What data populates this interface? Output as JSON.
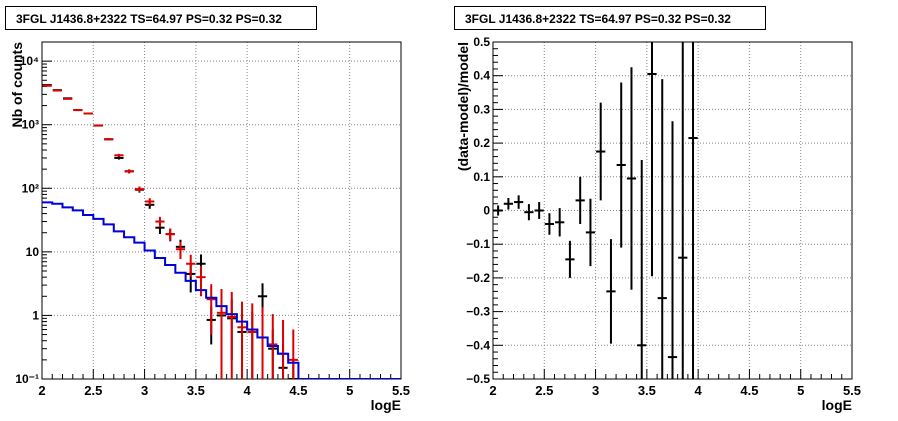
{
  "chart_data": [
    {
      "type": "line",
      "title": "3FGL J1436.8+2322 TS=64.97 PS=0.32 PS=0.32",
      "xlabel": "logE",
      "ylabel": "Nb of counts",
      "ylog": true,
      "xlim": [
        2,
        5.5
      ],
      "ylim": [
        0.1,
        20000
      ],
      "grid": true,
      "x_ticks": [
        2,
        2.5,
        3,
        3.5,
        4,
        4.5,
        5,
        5.5
      ],
      "x_tick_labels": [
        "2",
        "2.5",
        "3",
        "3.5",
        "4",
        "4.5",
        "5",
        "5.5"
      ],
      "y_ticks": [
        0.1,
        1,
        10,
        100,
        1000,
        10000
      ],
      "y_tick_labels": [
        "10⁻¹",
        "1",
        "10",
        "10²",
        "10³",
        "10⁴"
      ],
      "bin_width": 0.1,
      "series": [
        {
          "color": "#000000",
          "style": "errorbar",
          "x": [
            2.05,
            2.15,
            2.25,
            2.35,
            2.45,
            2.55,
            2.65,
            2.75,
            2.85,
            2.95,
            3.05,
            3.15,
            3.25,
            3.35,
            3.45,
            3.55,
            3.65,
            3.75,
            3.85,
            3.95,
            4.05,
            4.15,
            4.25,
            4.35,
            4.45
          ],
          "y": [
            4200,
            3500,
            2600,
            1700,
            1500,
            970,
            590,
            300,
            185,
            95,
            55,
            24,
            19,
            12,
            4.5,
            6.5,
            0.85,
            1.0,
            0.9,
            0.55,
            0.55,
            2.0,
            0.3,
            0.15,
            0.1
          ],
          "err_lo": [
            60,
            55,
            50,
            40,
            38,
            30,
            24,
            17,
            13,
            9.5,
            7.4,
            4.9,
            4.3,
            3.5,
            2.2,
            2.6,
            0.5,
            0.8,
            0.7,
            0.5,
            0.5,
            0.9,
            0.3,
            0.1,
            0.05
          ],
          "err_hi": [
            60,
            55,
            50,
            40,
            38,
            30,
            24,
            17,
            13,
            9.5,
            7.4,
            4.9,
            4.3,
            3.5,
            2.2,
            2.6,
            0.5,
            1.0,
            0.9,
            0.6,
            0.6,
            1.2,
            0.3,
            0.2,
            0.1
          ]
        },
        {
          "color": "#dd0000",
          "style": "errorbar",
          "x": [
            2.05,
            2.15,
            2.25,
            2.35,
            2.45,
            2.55,
            2.65,
            2.75,
            2.85,
            2.95,
            3.05,
            3.15,
            3.25,
            3.35,
            3.45,
            3.55,
            3.65,
            3.75,
            3.85,
            3.95,
            4.05,
            4.15,
            4.25,
            4.35,
            4.45
          ],
          "y": [
            4100,
            3450,
            2550,
            1700,
            1500,
            970,
            590,
            330,
            185,
            97,
            62,
            30,
            19,
            11,
            6.5,
            4.0,
            1.8,
            1.1,
            0.95,
            0.65,
            0.55,
            0.45,
            0.35,
            0.25,
            0.2
          ],
          "err_lo": [
            60,
            55,
            50,
            40,
            38,
            30,
            24,
            18,
            13,
            9.8,
            7.9,
            5.5,
            4.3,
            3.3,
            2.5,
            2,
            1.3,
            1.0,
            0.9,
            0.6,
            0.5,
            0.4,
            0.3,
            0.2,
            0.1
          ],
          "err_hi": [
            60,
            55,
            50,
            40,
            38,
            30,
            24,
            18,
            13,
            9.8,
            7.9,
            5.5,
            4.3,
            3.3,
            2.5,
            2,
            1.3,
            1.5,
            1.4,
            1.0,
            1.0,
            0.9,
            0.7,
            0.6,
            0.4
          ]
        },
        {
          "color": "#0000dd",
          "style": "step",
          "x": [
            2.05,
            2.15,
            2.25,
            2.35,
            2.45,
            2.55,
            2.65,
            2.75,
            2.85,
            2.95,
            3.05,
            3.15,
            3.25,
            3.35,
            3.45,
            3.55,
            3.65,
            3.75,
            3.85,
            3.95,
            4.05,
            4.15,
            4.25,
            4.35,
            4.45,
            4.55,
            4.65,
            4.75,
            4.85,
            4.95,
            5.05,
            5.15,
            5.25,
            5.35,
            5.45
          ],
          "y": [
            60,
            57,
            50,
            45,
            38,
            33,
            27,
            21,
            17,
            14,
            10.5,
            8,
            6.2,
            4.7,
            3.5,
            2.5,
            1.9,
            1.4,
            1.05,
            0.8,
            0.6,
            0.45,
            0.33,
            0.25,
            0.18,
            0.1,
            0.1,
            0.1,
            0.1,
            0.1,
            0.1,
            0.1,
            0.1,
            0.1,
            0.1
          ]
        }
      ]
    },
    {
      "type": "scatter",
      "title": "3FGL J1436.8+2322 TS=64.97 PS=0.32 PS=0.32",
      "xlabel": "logE",
      "ylabel": "(data-model)/model",
      "xlim": [
        2,
        5.5
      ],
      "ylim": [
        -0.5,
        0.5
      ],
      "grid": true,
      "x_ticks": [
        2,
        2.5,
        3,
        3.5,
        4,
        4.5,
        5,
        5.5
      ],
      "x_tick_labels": [
        "2",
        "2.5",
        "3",
        "3.5",
        "4",
        "4.5",
        "5",
        "5.5"
      ],
      "y_ticks": [
        -0.5,
        -0.4,
        -0.3,
        -0.2,
        -0.1,
        0,
        0.1,
        0.2,
        0.3,
        0.4,
        0.5
      ],
      "y_tick_labels": [
        "−0.5",
        "−0.4",
        "−0.3",
        "−0.2",
        "−0.1",
        "0",
        "0.1",
        "0.2",
        "0.3",
        "0.4",
        "0.5"
      ],
      "bin_width": 0.1,
      "series": [
        {
          "color": "#000000",
          "style": "errorbar",
          "x": [
            2.05,
            2.15,
            2.25,
            2.35,
            2.45,
            2.55,
            2.65,
            2.75,
            2.85,
            2.95,
            3.05,
            3.15,
            3.25,
            3.35,
            3.45,
            3.55,
            3.65,
            3.75,
            3.85,
            3.95
          ],
          "y": [
            0.0,
            0.02,
            0.025,
            -0.005,
            0.0,
            -0.04,
            -0.035,
            -0.145,
            0.03,
            -0.065,
            0.175,
            -0.24,
            0.135,
            0.095,
            -0.4,
            0.405,
            -0.26,
            -0.435,
            -0.14,
            0.215
          ],
          "err": [
            0.015,
            0.017,
            0.02,
            0.024,
            0.025,
            0.032,
            0.042,
            0.055,
            0.07,
            0.1,
            0.145,
            0.155,
            0.245,
            0.33,
            0.55,
            0.6,
            0.65,
            0.7,
            0.8,
            0.9
          ]
        }
      ]
    }
  ]
}
